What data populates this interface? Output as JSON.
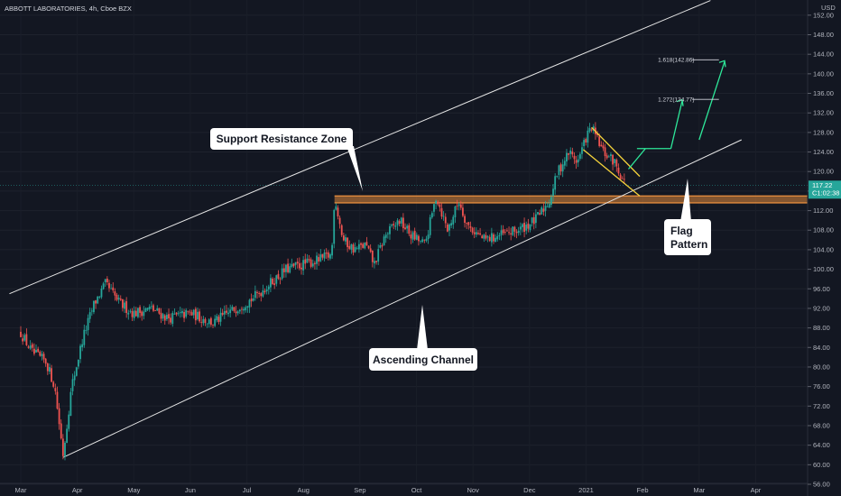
{
  "symbol_header": "ABBOTT LABORATORIES, 4h, Cboe BZX",
  "currency": "USD",
  "last_price": "117.22",
  "countdown": "C1:02:38",
  "colors": {
    "background": "#131722",
    "up": "#26a69a",
    "down": "#ef5350",
    "channel": "#e6e6e6",
    "zone": "#e0893d",
    "flag": "#f5d33b",
    "projection": "#2ee89a",
    "price_line": "#26a69a"
  },
  "annotations": {
    "support_resistance": "Support Resistance Zone",
    "ascending_channel": "Ascending Channel",
    "flag_line1": "Flag",
    "flag_line2": "Pattern"
  },
  "fib_levels": [
    {
      "label": "1.618(142.86)",
      "value": 142.86
    },
    {
      "label": "1.272(134.77)",
      "value": 134.77
    }
  ],
  "chart_data": {
    "type": "candlestick",
    "ylim": [
      56,
      154
    ],
    "y_ticks": [
      "56.00",
      "60.00",
      "64.00",
      "68.00",
      "72.00",
      "76.00",
      "80.00",
      "84.00",
      "88.00",
      "92.00",
      "96.00",
      "100.00",
      "104.00",
      "108.00",
      "112.00",
      "116.00",
      "120.00",
      "124.00",
      "128.00",
      "132.00",
      "136.00",
      "140.00",
      "144.00",
      "148.00",
      "152.00"
    ],
    "x_ticks": [
      "Mar",
      "Apr",
      "May",
      "Jun",
      "Jul",
      "Aug",
      "Sep",
      "Oct",
      "Nov",
      "Dec",
      "2021",
      "Feb",
      "Mar",
      "Apr"
    ],
    "support_zone": [
      113.6,
      115.0
    ],
    "path_points": [
      {
        "m": 0.0,
        "p": 87
      },
      {
        "m": 0.2,
        "p": 83
      },
      {
        "m": 0.45,
        "p": 81
      },
      {
        "m": 0.6,
        "p": 76
      },
      {
        "m": 0.75,
        "p": 62
      },
      {
        "m": 0.9,
        "p": 76
      },
      {
        "m": 1.1,
        "p": 86
      },
      {
        "m": 1.3,
        "p": 93
      },
      {
        "m": 1.5,
        "p": 97
      },
      {
        "m": 1.75,
        "p": 93
      },
      {
        "m": 2.0,
        "p": 91
      },
      {
        "m": 2.3,
        "p": 92
      },
      {
        "m": 2.6,
        "p": 90
      },
      {
        "m": 3.0,
        "p": 91
      },
      {
        "m": 3.4,
        "p": 89
      },
      {
        "m": 3.8,
        "p": 92
      },
      {
        "m": 4.1,
        "p": 94
      },
      {
        "m": 4.4,
        "p": 97
      },
      {
        "m": 4.7,
        "p": 100
      },
      {
        "m": 5.0,
        "p": 101
      },
      {
        "m": 5.3,
        "p": 102
      },
      {
        "m": 5.5,
        "p": 103
      },
      {
        "m": 5.55,
        "p": 115
      },
      {
        "m": 5.7,
        "p": 106
      },
      {
        "m": 5.9,
        "p": 104
      },
      {
        "m": 6.1,
        "p": 105
      },
      {
        "m": 6.25,
        "p": 101
      },
      {
        "m": 6.45,
        "p": 107
      },
      {
        "m": 6.7,
        "p": 110
      },
      {
        "m": 6.9,
        "p": 107
      },
      {
        "m": 7.15,
        "p": 105
      },
      {
        "m": 7.35,
        "p": 115
      },
      {
        "m": 7.55,
        "p": 108
      },
      {
        "m": 7.75,
        "p": 114
      },
      {
        "m": 7.9,
        "p": 109
      },
      {
        "m": 8.2,
        "p": 106
      },
      {
        "m": 8.5,
        "p": 107
      },
      {
        "m": 8.8,
        "p": 108
      },
      {
        "m": 9.1,
        "p": 110
      },
      {
        "m": 9.35,
        "p": 114
      },
      {
        "m": 9.5,
        "p": 120
      },
      {
        "m": 9.7,
        "p": 124
      },
      {
        "m": 9.85,
        "p": 122
      },
      {
        "m": 10.0,
        "p": 127
      },
      {
        "m": 10.1,
        "p": 129
      },
      {
        "m": 10.3,
        "p": 124
      },
      {
        "m": 10.5,
        "p": 122
      },
      {
        "m": 10.7,
        "p": 117.2
      }
    ],
    "channel_lower": [
      {
        "m": 0.75,
        "p": 61.5
      },
      {
        "m": 12.75,
        "p": 126.5
      }
    ],
    "channel_upper": [
      {
        "m": -0.2,
        "p": 95
      },
      {
        "m": 12.2,
        "p": 155
      }
    ],
    "flag_upper": [
      {
        "m": 10.1,
        "p": 129
      },
      {
        "m": 10.95,
        "p": 119
      }
    ],
    "flag_lower": [
      {
        "m": 9.95,
        "p": 124.5
      },
      {
        "m": 10.95,
        "p": 115
      }
    ],
    "projection_path": [
      {
        "m": 10.8,
        "p": 121.5
      },
      {
        "m": 11.35,
        "p": 134.5
      },
      {
        "m": 11.55,
        "p": 134.5
      },
      {
        "m": 11.5,
        "p": 124.7
      },
      {
        "m": 10.9,
        "p": 124.7
      }
    ],
    "fib_line_range": [
      {
        "m": 10.6
      },
      {
        "m": 12.35
      }
    ]
  }
}
